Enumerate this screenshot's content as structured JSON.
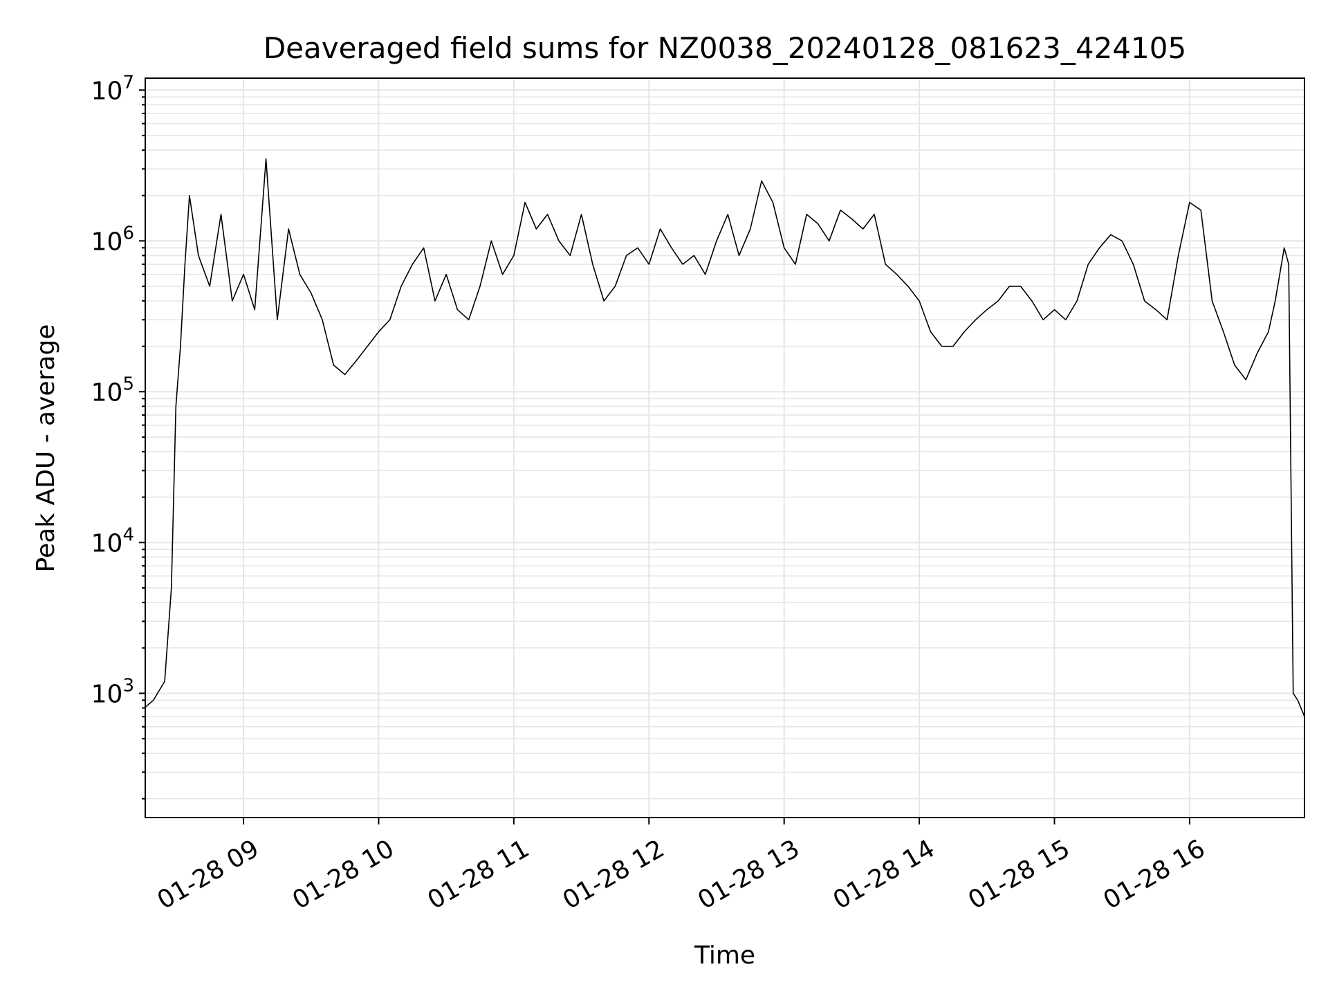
{
  "chart_data": {
    "type": "line",
    "title": "Deaveraged field sums for NZ0038_20240128_081623_424105",
    "xlabel": "Time",
    "ylabel": "Peak ADU - average",
    "yscale": "log",
    "ylim": [
      150,
      12000000
    ],
    "xlim": [
      "2024-01-28 08:16:23",
      "2024-01-28 16:51:00"
    ],
    "grid": true,
    "grid_which": "both",
    "line_color": "#000000",
    "grid_color": "#e6e6e6",
    "x_tick_labels": [
      "01-28 09",
      "01-28 10",
      "01-28 11",
      "01-28 12",
      "01-28 13",
      "01-28 14",
      "01-28 15",
      "01-28 16"
    ],
    "x_tick_times": [
      "2024-01-28 09:00",
      "2024-01-28 10:00",
      "2024-01-28 11:00",
      "2024-01-28 12:00",
      "2024-01-28 13:00",
      "2024-01-28 14:00",
      "2024-01-28 15:00",
      "2024-01-28 16:00"
    ],
    "y_ticks": [
      {
        "base": "10",
        "exp": "3",
        "value": 1000
      },
      {
        "base": "10",
        "exp": "4",
        "value": 10000
      },
      {
        "base": "10",
        "exp": "5",
        "value": 100000
      },
      {
        "base": "10",
        "exp": "6",
        "value": 1000000
      },
      {
        "base": "10",
        "exp": "7",
        "value": 10000000
      }
    ],
    "series": [
      {
        "x": [
          "2024-01-28 08:16",
          "2024-01-28 08:20",
          "2024-01-28 08:25",
          "2024-01-28 08:28",
          "2024-01-28 08:30",
          "2024-01-28 08:32",
          "2024-01-28 08:34",
          "2024-01-28 08:36",
          "2024-01-28 08:40",
          "2024-01-28 08:45",
          "2024-01-28 08:50",
          "2024-01-28 08:55",
          "2024-01-28 09:00",
          "2024-01-28 09:05",
          "2024-01-28 09:10",
          "2024-01-28 09:15",
          "2024-01-28 09:20",
          "2024-01-28 09:25",
          "2024-01-28 09:30",
          "2024-01-28 09:35",
          "2024-01-28 09:40",
          "2024-01-28 09:45",
          "2024-01-28 09:50",
          "2024-01-28 09:55",
          "2024-01-28 10:00",
          "2024-01-28 10:05",
          "2024-01-28 10:10",
          "2024-01-28 10:15",
          "2024-01-28 10:20",
          "2024-01-28 10:25",
          "2024-01-28 10:30",
          "2024-01-28 10:35",
          "2024-01-28 10:40",
          "2024-01-28 10:45",
          "2024-01-28 10:50",
          "2024-01-28 10:55",
          "2024-01-28 11:00",
          "2024-01-28 11:05",
          "2024-01-28 11:10",
          "2024-01-28 11:15",
          "2024-01-28 11:20",
          "2024-01-28 11:25",
          "2024-01-28 11:30",
          "2024-01-28 11:35",
          "2024-01-28 11:40",
          "2024-01-28 11:45",
          "2024-01-28 11:50",
          "2024-01-28 11:55",
          "2024-01-28 12:00",
          "2024-01-28 12:05",
          "2024-01-28 12:10",
          "2024-01-28 12:15",
          "2024-01-28 12:20",
          "2024-01-28 12:25",
          "2024-01-28 12:30",
          "2024-01-28 12:35",
          "2024-01-28 12:40",
          "2024-01-28 12:45",
          "2024-01-28 12:50",
          "2024-01-28 12:55",
          "2024-01-28 13:00",
          "2024-01-28 13:05",
          "2024-01-28 13:10",
          "2024-01-28 13:15",
          "2024-01-28 13:20",
          "2024-01-28 13:25",
          "2024-01-28 13:30",
          "2024-01-28 13:35",
          "2024-01-28 13:40",
          "2024-01-28 13:45",
          "2024-01-28 13:50",
          "2024-01-28 13:55",
          "2024-01-28 14:00",
          "2024-01-28 14:05",
          "2024-01-28 14:10",
          "2024-01-28 14:15",
          "2024-01-28 14:20",
          "2024-01-28 14:25",
          "2024-01-28 14:30",
          "2024-01-28 14:35",
          "2024-01-28 14:40",
          "2024-01-28 14:45",
          "2024-01-28 14:50",
          "2024-01-28 14:55",
          "2024-01-28 15:00",
          "2024-01-28 15:05",
          "2024-01-28 15:10",
          "2024-01-28 15:15",
          "2024-01-28 15:20",
          "2024-01-28 15:25",
          "2024-01-28 15:30",
          "2024-01-28 15:35",
          "2024-01-28 15:40",
          "2024-01-28 15:45",
          "2024-01-28 15:50",
          "2024-01-28 15:55",
          "2024-01-28 16:00",
          "2024-01-28 16:05",
          "2024-01-28 16:10",
          "2024-01-28 16:15",
          "2024-01-28 16:20",
          "2024-01-28 16:25",
          "2024-01-28 16:30",
          "2024-01-28 16:35",
          "2024-01-28 16:38",
          "2024-01-28 16:40",
          "2024-01-28 16:42",
          "2024-01-28 16:44",
          "2024-01-28 16:46",
          "2024-01-28 16:48",
          "2024-01-28 16:51"
        ],
        "y": [
          800,
          900,
          1200,
          5000,
          80000,
          200000,
          700000,
          2000000,
          800000,
          500000,
          1500000,
          400000,
          600000,
          350000,
          3500000,
          300000,
          1200000,
          600000,
          450000,
          300000,
          150000,
          130000,
          160000,
          200000,
          250000,
          300000,
          500000,
          700000,
          900000,
          400000,
          600000,
          350000,
          300000,
          500000,
          1000000,
          600000,
          800000,
          1800000,
          1200000,
          1500000,
          1000000,
          800000,
          1500000,
          700000,
          400000,
          500000,
          800000,
          900000,
          700000,
          1200000,
          900000,
          700000,
          800000,
          600000,
          1000000,
          1500000,
          800000,
          1200000,
          2500000,
          1800000,
          900000,
          700000,
          1500000,
          1300000,
          1000000,
          1600000,
          1400000,
          1200000,
          1500000,
          700000,
          600000,
          500000,
          400000,
          250000,
          200000,
          200000,
          250000,
          300000,
          350000,
          400000,
          500000,
          500000,
          400000,
          300000,
          350000,
          300000,
          400000,
          700000,
          900000,
          1100000,
          1000000,
          700000,
          400000,
          350000,
          300000,
          800000,
          1800000,
          1600000,
          400000,
          250000,
          150000,
          120000,
          180000,
          250000,
          400000,
          600000,
          900000,
          700000,
          1000,
          900,
          700
        ]
      }
    ]
  }
}
